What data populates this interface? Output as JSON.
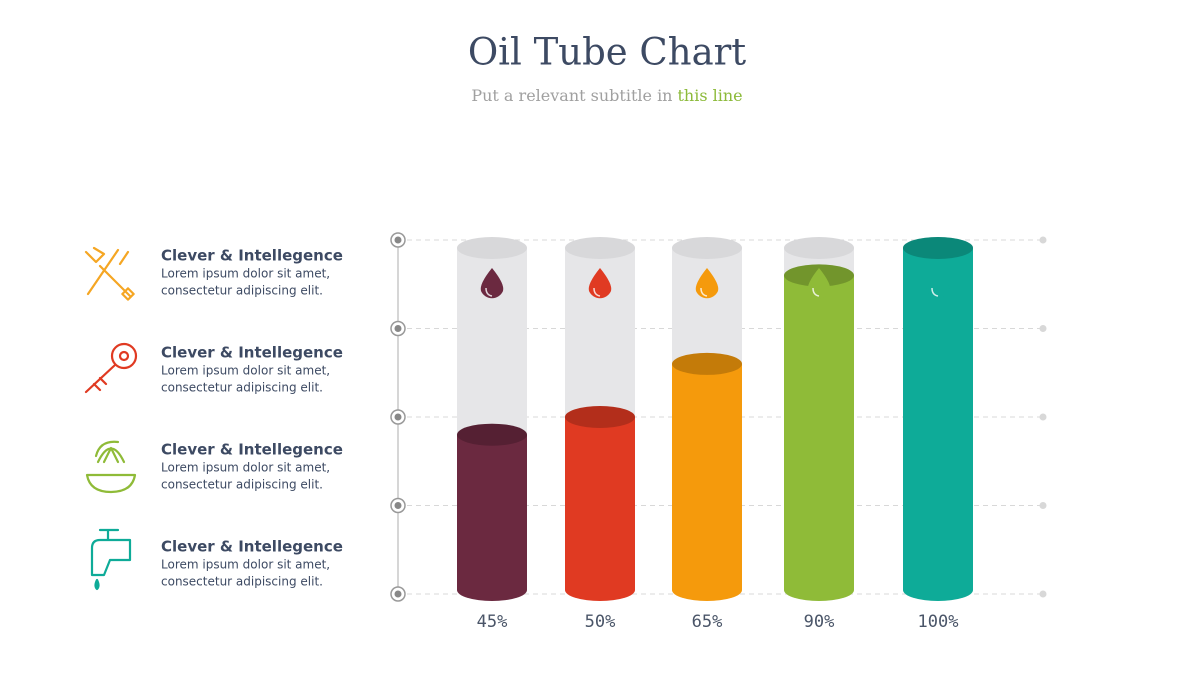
{
  "chart_data": {
    "type": "tube",
    "title": "Oil Tube Chart",
    "subtitle": {
      "text": "Put a relevant subtitle in",
      "highlight": "this line"
    },
    "categories": [
      null,
      null,
      null,
      null,
      null
    ],
    "values": [
      45,
      50,
      65,
      90,
      100
    ],
    "value_labels": [
      "45%",
      "50%",
      "65%",
      "90%",
      "100%"
    ],
    "colors": [
      "#6b2940",
      "#e03a22",
      "#f59a0c",
      "#8fbb38",
      "#0eab98"
    ],
    "ylim": [
      0,
      100
    ],
    "yticks": [
      0,
      25,
      50,
      75,
      100
    ],
    "grid": true
  },
  "features": [
    {
      "title": "Clever & Intellegence",
      "lines": [
        "Lorem ipsum dolor sit amet,",
        "consectetur adipiscing elit."
      ]
    },
    {
      "title": "Clever & Intellegence",
      "lines": [
        "Lorem ipsum dolor sit amet,",
        "consectetur adipiscing elit."
      ]
    },
    {
      "title": "Clever & Intellegence",
      "lines": [
        "Lorem ipsum dolor sit amet,",
        "consectetur adipiscing elit."
      ]
    },
    {
      "title": "Clever & Intellegence",
      "lines": [
        "Lorem ipsum dolor sit amet,",
        "consectetur adipiscing elit."
      ]
    }
  ]
}
